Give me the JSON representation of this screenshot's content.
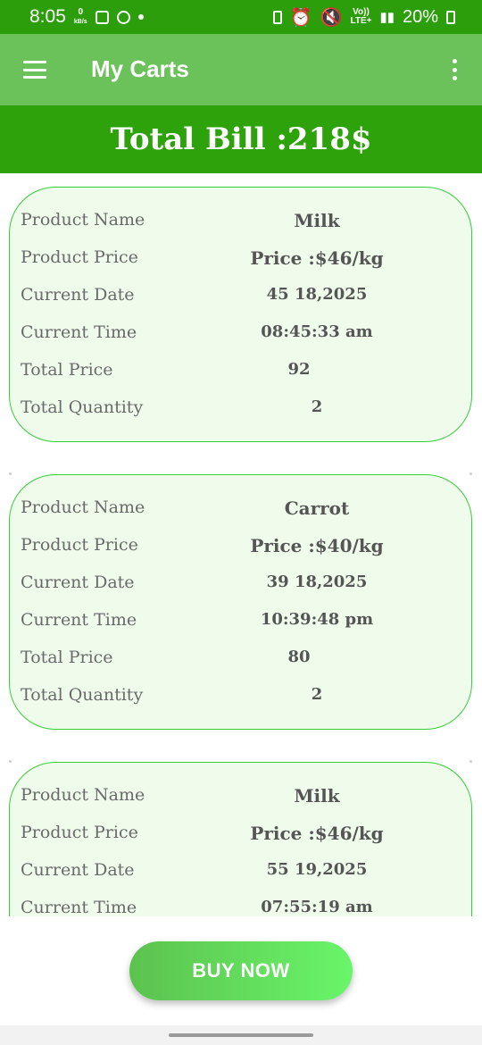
{
  "status_bar": {
    "time": "8:05",
    "net_speed_value": "0",
    "net_speed_unit": "kB/s",
    "volte_label": "Vo))",
    "lte_label": "LTE+",
    "battery": "20%"
  },
  "app_bar": {
    "title": "My Carts"
  },
  "summary": {
    "total_bill": "Total Bill :218$"
  },
  "cart": {
    "labels": {
      "name": "Product Name",
      "price": "Product Price",
      "date": "Current Date",
      "time": "Current Time",
      "total": "Total Price",
      "qty": "Total Quantity"
    },
    "items": [
      {
        "name": "Milk",
        "price": "Price :$46/kg",
        "date": "45 18,2025",
        "time": "08:45:33 am",
        "total": "92",
        "qty": "2"
      },
      {
        "name": "Carrot",
        "price": "Price :$40/kg",
        "date": "39 18,2025",
        "time": "10:39:48 pm",
        "total": "80",
        "qty": "2"
      },
      {
        "name": "Milk",
        "price": "Price :$46/kg",
        "date": "55 19,2025",
        "time": "07:55:19 am",
        "total": "",
        "qty": ""
      }
    ]
  },
  "actions": {
    "buy_now": "BUY NOW"
  },
  "colors": {
    "status_bar": "#2c9e0c",
    "app_bar": "#6cc25a",
    "total_bill_bg": "#2ea20a",
    "card_bg": "#effcec",
    "card_border": "#36cf36"
  }
}
